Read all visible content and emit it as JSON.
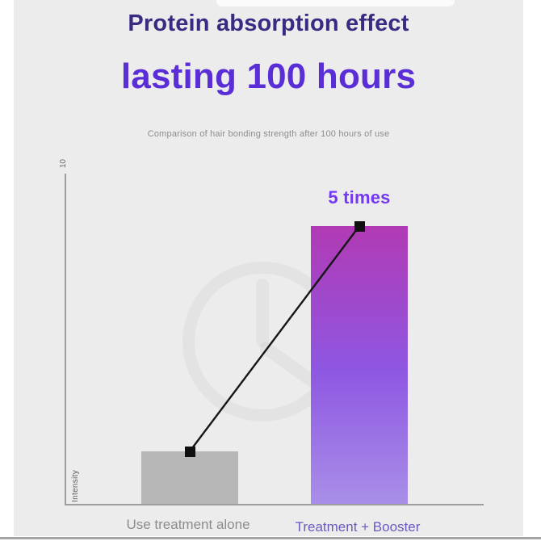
{
  "page": {
    "background": "#ffffff",
    "canvas_background": "#ececec",
    "bottom_edge_color": "#a5a5a5"
  },
  "header": {
    "title_line1": "Protein absorption effect",
    "title_line2": "lasting 100 hours",
    "subtitle": "Comparison of hair bonding strength after 100 hours of use",
    "title_line1_color": "#392b82",
    "title_line2_color": "#5a2ed6",
    "subtitle_color": "#8d8d8d"
  },
  "chart_data": {
    "type": "bar",
    "title": "Protein absorption effect lasting 100 hours",
    "subtitle": "Comparison of hair bonding strength after 100 hours of use",
    "categories": [
      "Use treatment alone",
      "Treatment + Booster"
    ],
    "values": [
      1.6,
      8.4
    ],
    "ylim": [
      0,
      10
    ],
    "ylabel": "Intensity",
    "y_top_tick": "10",
    "annotation": "5 times",
    "annotation_color": "#7338f3",
    "ratio_depicted": 5,
    "grid": false,
    "legend": false,
    "bar_left_color": "#b8b7b7",
    "bar_right_gradient": [
      "#b13ab4",
      "#8e57e2",
      "#a98fe8"
    ],
    "connector_color": "#161616",
    "marker_color": "#101010",
    "category_label_colors": [
      "#8c8c8c",
      "#6c59bd"
    ]
  }
}
